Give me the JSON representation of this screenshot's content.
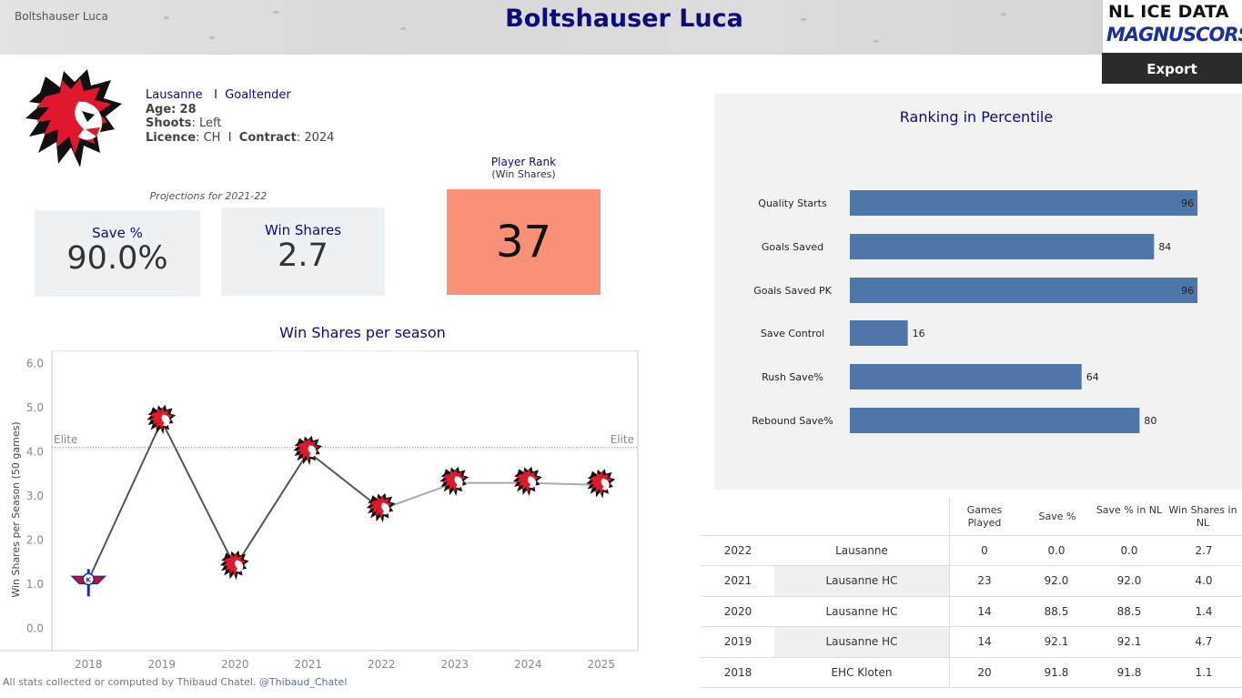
{
  "header": {
    "player_short": "Boltshauser Luca",
    "title": "Boltshauser Luca",
    "brand_top": "NL ICE DATA",
    "brand_bottom": "MAGNUSCORSI",
    "export_label": "Export"
  },
  "player": {
    "team": "Lausanne",
    "sep": "I",
    "position": "Goaltender",
    "age_label": "Age:",
    "age": "28",
    "shoots_label": "Shoots",
    "shoots": "Left",
    "licence_label": "Licence",
    "licence": "CH",
    "contract_label": "Contract",
    "contract": "2024",
    "logo_icon": "lion-head-logo-icon"
  },
  "projections": {
    "label": "Projections for 2021-22",
    "save_pct_title": "Save %",
    "save_pct_value": "90.0%",
    "win_shares_title": "Win Shares",
    "win_shares_value": "2.7"
  },
  "rank": {
    "title": "Player Rank",
    "subtitle": "(Win Shares)",
    "value": "37",
    "color": "#f99077"
  },
  "chart_data": [
    {
      "type": "line",
      "title": "Win Shares per season",
      "ylabel": "Win Shares per Season (50 games)",
      "xlabel": "",
      "ylim": [
        -0.5,
        6.3
      ],
      "yticks": [
        "0.0",
        "1.0",
        "2.0",
        "3.0",
        "4.0",
        "5.0",
        "6.0"
      ],
      "x": [
        "2018",
        "2019",
        "2020",
        "2021",
        "2022",
        "2023",
        "2024",
        "2025"
      ],
      "values": [
        1.1,
        4.7,
        1.4,
        4.0,
        2.7,
        3.3,
        3.3,
        3.25
      ],
      "markers": [
        "kloten-logo-icon",
        "lion-head-logo-icon",
        "lion-head-logo-icon",
        "lion-head-logo-icon",
        "lion-head-logo-icon",
        "lion-head-logo-icon",
        "lion-head-logo-icon",
        "lion-head-logo-icon"
      ],
      "projected_from_index": 4,
      "reference_line": {
        "label": "Elite",
        "value": 4.1
      },
      "grid": false
    },
    {
      "type": "bar",
      "orientation": "horizontal",
      "title": "Ranking in Percentile",
      "categories": [
        "Quality Starts",
        "Goals Saved",
        "Goals Saved PK",
        "Save Control",
        "Rush Save%",
        "Rebound Save%"
      ],
      "values": [
        96,
        84,
        96,
        16,
        64,
        80
      ],
      "xlim": [
        0,
        100
      ],
      "color": "#4e77a8"
    }
  ],
  "table": {
    "headers": [
      "Games Played",
      "Save %",
      "Save % in NL",
      "Win Shares in NL"
    ],
    "rows": [
      {
        "season": "2022",
        "team": "Lausanne",
        "gp": "0",
        "sv": "0.0",
        "sv_nl": "0.0",
        "ws_nl": "2.7"
      },
      {
        "season": "2021",
        "team": "Lausanne HC",
        "gp": "23",
        "sv": "92.0",
        "sv_nl": "92.0",
        "ws_nl": "4.0"
      },
      {
        "season": "2020",
        "team": "Lausanne HC",
        "gp": "14",
        "sv": "88.5",
        "sv_nl": "88.5",
        "ws_nl": "1.4"
      },
      {
        "season": "2019",
        "team": "Lausanne HC",
        "gp": "14",
        "sv": "92.1",
        "sv_nl": "92.1",
        "ws_nl": "4.7"
      },
      {
        "season": "2018",
        "team": "EHC Kloten",
        "gp": "20",
        "sv": "91.8",
        "sv_nl": "91.8",
        "ws_nl": "1.1"
      }
    ]
  },
  "footer": {
    "text": "All stats collected or computed by Thibaud Chatel.",
    "handle": "@Thibaud_Chatel"
  }
}
